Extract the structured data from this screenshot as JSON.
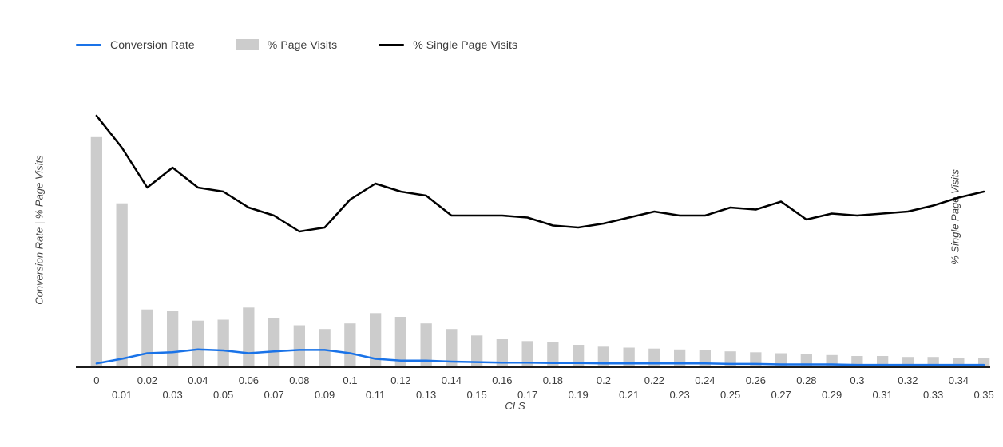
{
  "legend": {
    "items": [
      {
        "label": "Conversion Rate",
        "swatch": "line",
        "color": "#1a73e8"
      },
      {
        "label": "% Page Visits",
        "swatch": "bar",
        "color": "#cccccc"
      },
      {
        "label": "% Single Page Visits",
        "swatch": "line",
        "color": "#000000"
      }
    ]
  },
  "axes": {
    "left_title": "Conversion Rate | % Page Visits",
    "right_title": "% Single Page Visits",
    "x_title": "CLS"
  },
  "chart_data": {
    "type": "combo",
    "title": "",
    "xlabel": "CLS",
    "ylabel_left": "Conversion Rate | % Page Visits",
    "ylabel_right": "% Single Page Visits",
    "ylim_left": [
      0,
      30
    ],
    "ylim_right": [
      0,
      70
    ],
    "grid": false,
    "legend_position": "top",
    "x_labels": [
      "0",
      "0.01",
      "0.02",
      "0.03",
      "0.04",
      "0.05",
      "0.06",
      "0.07",
      "0.08",
      "0.09",
      "0.1",
      "0.11",
      "0.12",
      "0.13",
      "0.14",
      "0.15",
      "0.16",
      "0.17",
      "0.18",
      "0.19",
      "0.2",
      "0.21",
      "0.22",
      "0.23",
      "0.24",
      "0.25",
      "0.26",
      "0.27",
      "0.28",
      "0.29",
      "0.3",
      "0.31",
      "0.32",
      "0.33",
      "0.34",
      "0.35"
    ],
    "series": [
      {
        "name": "% Page Visits",
        "type": "bar",
        "axis": "left",
        "color": "#cccccc",
        "values": [
          24.7,
          17.6,
          6.2,
          6.0,
          5.0,
          5.1,
          6.4,
          5.3,
          4.5,
          4.1,
          4.7,
          5.8,
          5.4,
          4.7,
          4.1,
          3.4,
          3.0,
          2.8,
          2.7,
          2.4,
          2.2,
          2.1,
          2.0,
          1.9,
          1.8,
          1.7,
          1.6,
          1.5,
          1.4,
          1.3,
          1.2,
          1.2,
          1.1,
          1.1,
          1.0,
          1.0
        ]
      },
      {
        "name": "Conversion Rate",
        "type": "line",
        "axis": "left",
        "color": "#1a73e8",
        "stroke_width": 2.5,
        "values": [
          0.4,
          0.9,
          1.5,
          1.6,
          1.9,
          1.8,
          1.5,
          1.7,
          1.85,
          1.85,
          1.5,
          0.9,
          0.7,
          0.7,
          0.6,
          0.55,
          0.5,
          0.5,
          0.45,
          0.45,
          0.4,
          0.4,
          0.4,
          0.4,
          0.4,
          0.35,
          0.35,
          0.3,
          0.3,
          0.3,
          0.25,
          0.25,
          0.25,
          0.25,
          0.25,
          0.25
        ]
      },
      {
        "name": "% Single Page Visits",
        "type": "line",
        "axis": "right",
        "color": "#000000",
        "stroke_width": 2.5,
        "values": [
          63,
          55,
          45,
          50,
          45,
          44,
          40,
          38,
          34,
          35,
          42,
          46,
          44,
          43,
          38,
          38,
          38,
          37.5,
          35.5,
          35,
          36,
          37.5,
          39,
          38,
          38,
          40,
          39.5,
          41.5,
          37,
          38.5,
          38,
          38.5,
          39,
          40.5,
          42.5,
          44
        ]
      }
    ]
  }
}
